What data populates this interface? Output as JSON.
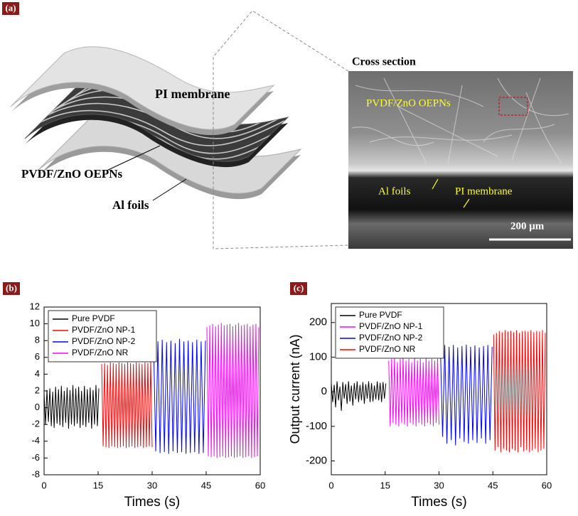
{
  "panel_a": {
    "label": "(a)",
    "schematic": {
      "pi_membrane": "PI membrane",
      "pvdf_layer": "PVDF/ZnO OEPNs",
      "al_foils": "Al foils"
    },
    "sem": {
      "title": "Cross section",
      "pvdf_layer": "PVDF/ZnO OEPNs",
      "al_foils": "Al foils",
      "pi_membrane": "PI membrane",
      "scale_bar": "200 μm"
    }
  },
  "chart_data": [
    {
      "type": "line",
      "panel_label": "(b)",
      "x_label": "Times (s)",
      "xlim": [
        0,
        60
      ],
      "xticks": [
        0,
        15,
        30,
        45,
        60
      ],
      "ylim": [
        -8,
        12
      ],
      "yticks": [
        -8,
        -6,
        -4,
        -2,
        0,
        2,
        4,
        6,
        8,
        10,
        12
      ],
      "legend": "upper left",
      "series": [
        {
          "name": "Pure PVDF",
          "color": "#000000",
          "x": [
            0,
            0.4,
            0.8,
            1.2,
            1.6,
            2,
            2.4,
            2.8,
            3.2,
            3.6,
            4,
            4.4,
            4.8,
            5.2,
            5.6,
            6,
            6.4,
            6.8,
            7.2,
            7.6,
            8,
            8.4,
            8.8,
            9.2,
            9.6,
            10,
            10.4,
            10.8,
            11.2,
            11.6,
            12,
            12.4,
            12.8,
            13.2,
            13.6,
            14,
            14.4,
            14.8,
            15.2
          ],
          "values": [
            1.8,
            -2.0,
            2.1,
            -1.7,
            2.3,
            -2.2,
            1.9,
            -2.4,
            2.5,
            -1.9,
            2.2,
            -2.1,
            2.6,
            -2.3,
            2.0,
            -1.8,
            2.4,
            -2.5,
            2.1,
            -2.0,
            2.7,
            -2.2,
            2.3,
            -1.9,
            2.5,
            -2.4,
            2.0,
            -2.1,
            2.6,
            -2.3,
            2.2,
            -1.8,
            2.4,
            -2.5,
            2.1,
            -2.0,
            2.7,
            -2.2,
            2.3
          ]
        },
        {
          "name": "PVDF/ZnO NP-1",
          "color": "#ff0000",
          "x": [
            16,
            16.4,
            16.8,
            17.2,
            17.6,
            18,
            18.4,
            18.8,
            19.2,
            19.6,
            20,
            20.4,
            20.8,
            21.2,
            21.6,
            22,
            22.4,
            22.8,
            23.2,
            23.6,
            24,
            24.4,
            24.8,
            25.2,
            25.6,
            26,
            26.4,
            26.8,
            27.2,
            27.6,
            28,
            28.4,
            28.8,
            29.2,
            29.6,
            30
          ],
          "values": [
            5.2,
            -4.6,
            5.3,
            -4.7,
            5.1,
            -4.8,
            5.4,
            -4.6,
            5.3,
            -4.7,
            5.2,
            -4.8,
            5.4,
            -4.7,
            5.3,
            -4.6,
            5.2,
            -4.8,
            5.4,
            -4.7,
            5.3,
            -4.6,
            5.2,
            -4.8,
            5.4,
            -4.7,
            5.3,
            -4.6,
            5.2,
            -4.8,
            5.4,
            -4.7,
            5.3,
            -4.6,
            5.5,
            -4.7
          ]
        },
        {
          "name": "PVDF/ZnO NP-2",
          "color": "#0000ff",
          "x": [
            30.4,
            31,
            31.6,
            32.2,
            32.8,
            33.4,
            34,
            34.6,
            35.2,
            35.8,
            36.4,
            37,
            37.6,
            38.2,
            38.8,
            39.4,
            40,
            40.6,
            41.2,
            41.8,
            42.4,
            43,
            43.6,
            44.2,
            44.8
          ],
          "values": [
            7.6,
            -5.2,
            7.9,
            -5.4,
            8.1,
            -5.3,
            7.8,
            -5.5,
            8.0,
            -5.2,
            7.7,
            -5.4,
            8.2,
            -5.3,
            7.9,
            -5.5,
            8.0,
            -5.4,
            7.8,
            -5.3,
            8.1,
            -5.5,
            7.9,
            -5.4,
            8.0
          ]
        },
        {
          "name": "PVDF/ZnO NR",
          "color": "#ff00ff",
          "x": [
            45.2,
            45.6,
            46,
            46.4,
            46.8,
            47.2,
            47.6,
            48,
            48.4,
            48.8,
            49.2,
            49.6,
            50,
            50.4,
            50.8,
            51.2,
            51.6,
            52,
            52.4,
            52.8,
            53.2,
            53.6,
            54,
            54.4,
            54.8,
            55.2,
            55.6,
            56,
            56.4,
            56.8,
            57.2,
            57.6,
            58,
            58.4,
            58.8,
            59.2,
            59.6
          ],
          "values": [
            9.6,
            -5.8,
            9.8,
            -5.9,
            10.0,
            -5.8,
            9.7,
            -6.0,
            9.9,
            -5.9,
            10.1,
            -5.8,
            9.8,
            -6.0,
            9.9,
            -5.9,
            10.0,
            -5.8,
            9.7,
            -6.0,
            9.9,
            -5.9,
            10.1,
            -5.8,
            9.8,
            -6.0,
            9.9,
            -5.9,
            10.0,
            -5.8,
            9.7,
            -6.0,
            9.9,
            -5.9,
            10.0,
            -5.8,
            9.6
          ]
        }
      ]
    },
    {
      "type": "line",
      "panel_label": "(c)",
      "x_label": "Times (s)",
      "y_label": "Output current (nA)",
      "xlim": [
        0,
        60
      ],
      "xticks": [
        0,
        15,
        30,
        45,
        60
      ],
      "ylim": [
        -240,
        255
      ],
      "yticks": [
        -200,
        -100,
        0,
        100,
        200
      ],
      "legend": "upper left",
      "series": [
        {
          "name": "Pure PVDF",
          "color": "#000000",
          "x": [
            0,
            0.4,
            0.8,
            1.2,
            1.6,
            2,
            2.4,
            2.8,
            3.2,
            3.6,
            4,
            4.4,
            4.8,
            5.2,
            5.6,
            6,
            6.4,
            6.8,
            7.2,
            7.6,
            8,
            8.4,
            8.8,
            9.2,
            9.6,
            10,
            10.4,
            10.8,
            11.2,
            11.6,
            12,
            12.4,
            12.8,
            13.2,
            13.6,
            14,
            14.4,
            14.8,
            15.2
          ],
          "values": [
            25,
            -30,
            20,
            -45,
            30,
            -25,
            15,
            -55,
            28,
            -20,
            22,
            -35,
            30,
            -28,
            18,
            -40,
            25,
            -22,
            30,
            -30,
            20,
            -25,
            28,
            -35,
            22,
            -20,
            30,
            -30,
            25,
            -28,
            18,
            -22,
            30,
            -25,
            26,
            -30,
            28,
            -20,
            24
          ]
        },
        {
          "name": "PVDF/ZnO NP-1",
          "color": "#ff00ff",
          "x": [
            16,
            16.4,
            16.8,
            17.2,
            17.6,
            18,
            18.4,
            18.8,
            19.2,
            19.6,
            20,
            20.4,
            20.8,
            21.2,
            21.6,
            22,
            22.4,
            22.8,
            23.2,
            23.6,
            24,
            24.4,
            24.8,
            25.2,
            25.6,
            26,
            26.4,
            26.8,
            27.2,
            27.6,
            28,
            28.4,
            28.8,
            29.2,
            29.6,
            30
          ],
          "values": [
            90,
            -100,
            95,
            -90,
            100,
            -95,
            85,
            -100,
            95,
            -90,
            100,
            -95,
            90,
            -100,
            95,
            -90,
            85,
            -95,
            100,
            -100,
            90,
            -90,
            95,
            -95,
            85,
            -100,
            100,
            -90,
            90,
            -95,
            95,
            -100,
            90,
            -90,
            95,
            -95
          ]
        },
        {
          "name": "PVDF/ZnO NP-2",
          "color": "#0000ff",
          "x": [
            30.4,
            31,
            31.6,
            32.2,
            32.8,
            33.4,
            34,
            34.6,
            35.2,
            35.8,
            36.4,
            37,
            37.6,
            38.2,
            38.8,
            39.4,
            40,
            40.6,
            41.2,
            41.8,
            42.4,
            43,
            43.6,
            44.2,
            44.8
          ],
          "values": [
            125,
            -130,
            135,
            -150,
            130,
            -140,
            135,
            -155,
            128,
            -135,
            132,
            -145,
            136,
            -150,
            130,
            -140,
            134,
            -148,
            128,
            -135,
            132,
            -150,
            135,
            -140,
            130
          ]
        },
        {
          "name": "PVDF/ZnO NR",
          "color": "#ff0000",
          "x": [
            45.2,
            45.6,
            46,
            46.4,
            46.8,
            47.2,
            47.6,
            48,
            48.4,
            48.8,
            49.2,
            49.6,
            50,
            50.4,
            50.8,
            51.2,
            51.6,
            52,
            52.4,
            52.8,
            53.2,
            53.6,
            54,
            54.4,
            54.8,
            55.2,
            55.6,
            56,
            56.4,
            56.8,
            57.2,
            57.6,
            58,
            58.4,
            58.8,
            59.2,
            59.6
          ],
          "values": [
            165,
            -170,
            170,
            -160,
            175,
            -175,
            172,
            -165,
            178,
            -170,
            174,
            -175,
            176,
            -165,
            172,
            -170,
            178,
            -175,
            170,
            -160,
            175,
            -172,
            176,
            -168,
            174,
            -175,
            178,
            -170,
            172,
            -165,
            176,
            -175,
            174,
            -170,
            178,
            -165,
            170
          ]
        }
      ]
    }
  ]
}
